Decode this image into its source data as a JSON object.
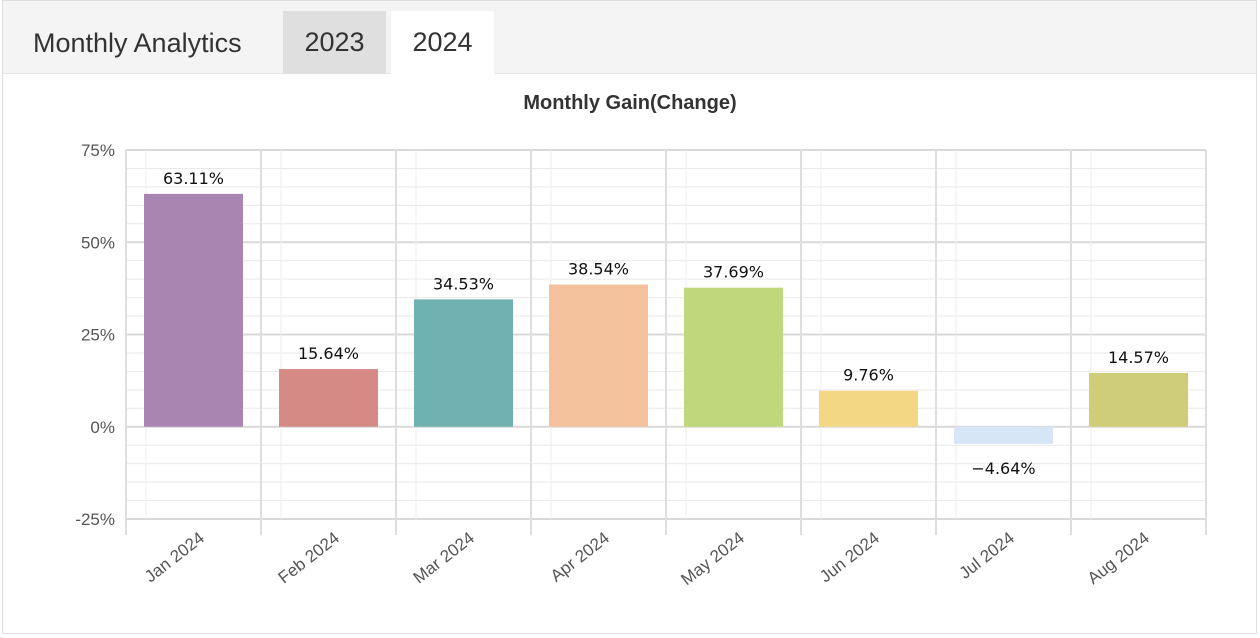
{
  "header": {
    "title": "Monthly Analytics",
    "tabs": [
      {
        "label": "2023",
        "active": false
      },
      {
        "label": "2024",
        "active": true
      }
    ]
  },
  "chart_data": {
    "type": "bar",
    "title": "Monthly Gain(Change)",
    "categories": [
      "Jan 2024",
      "Feb 2024",
      "Mar 2024",
      "Apr 2024",
      "May 2024",
      "Jun 2024",
      "Jul 2024",
      "Aug 2024"
    ],
    "values": [
      63.11,
      15.64,
      34.53,
      38.54,
      37.69,
      9.76,
      -4.64,
      14.57
    ],
    "data_labels": [
      "63.11%",
      "15.64%",
      "34.53%",
      "38.54%",
      "37.69%",
      "9.76%",
      "−4.64%",
      "14.57%"
    ],
    "colors": [
      "#a986b1",
      "#d58a86",
      "#70b2b1",
      "#f4c19d",
      "#c1d77b",
      "#f3d784",
      "#d6e6f6",
      "#cfcd78"
    ],
    "ylim": [
      -25,
      75
    ],
    "yticks": [
      -25,
      0,
      25,
      50,
      75
    ],
    "ytick_labels": [
      "-25%",
      "0%",
      "25%",
      "50%",
      "75%"
    ],
    "xlabel": "",
    "ylabel": "",
    "grid": true,
    "legend": "none"
  }
}
